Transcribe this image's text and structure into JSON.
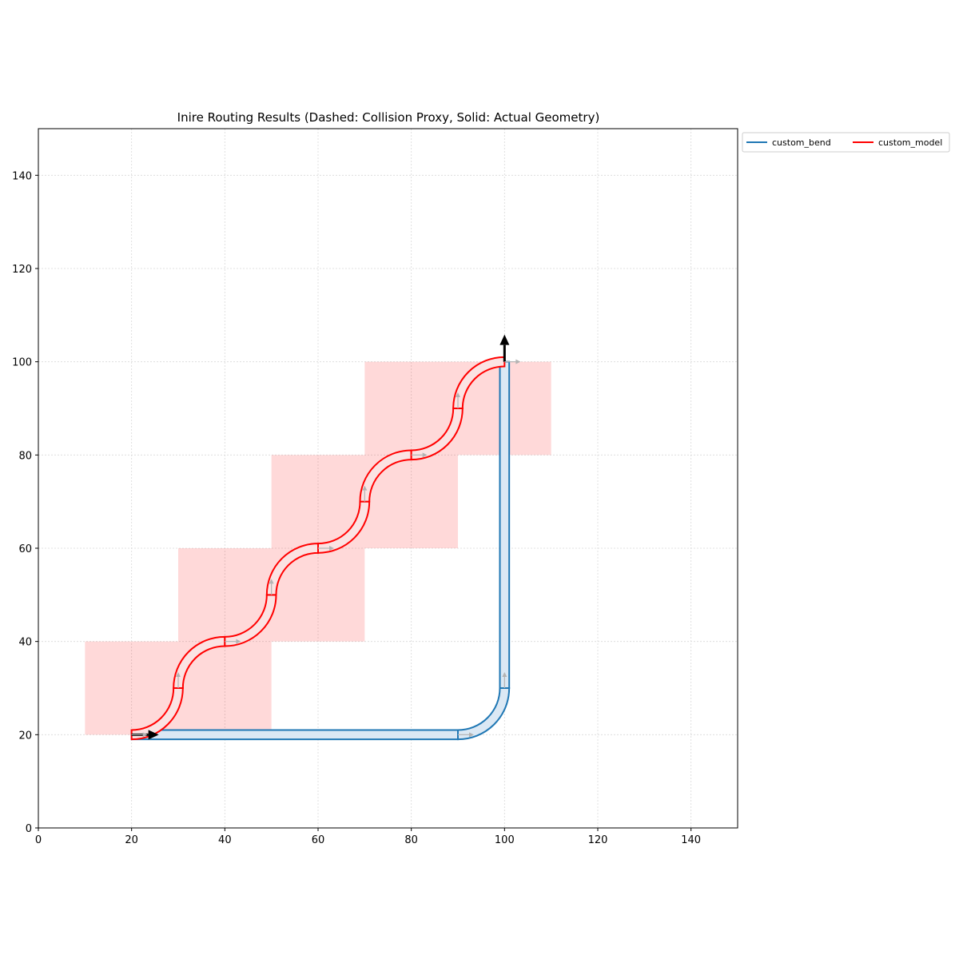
{
  "chart_data": {
    "type": "line",
    "title": "Inire Routing Results (Dashed: Collision Proxy, Solid: Actual Geometry)",
    "xlim": [
      0,
      150
    ],
    "ylim": [
      0,
      150
    ],
    "xticks": [
      0,
      20,
      40,
      60,
      80,
      100,
      120,
      140
    ],
    "yticks": [
      0,
      20,
      40,
      60,
      80,
      100,
      120,
      140
    ],
    "xtick_labels": [
      "0",
      "20",
      "40",
      "60",
      "80",
      "100",
      "120",
      "140"
    ],
    "ytick_labels": [
      "0",
      "20",
      "40",
      "60",
      "80",
      "100",
      "120",
      "140"
    ],
    "grid": true,
    "legend": {
      "placement": "outside-top-right",
      "entries": [
        "custom_bend",
        "custom_model"
      ]
    },
    "series": [
      {
        "name": "custom_bend",
        "color": "#1f77b4",
        "fill": "#dbe8f4",
        "width": 2,
        "segments": [
          {
            "type": "straight",
            "from": [
              20,
              20
            ],
            "to": [
              90,
              20
            ]
          },
          {
            "type": "bend",
            "center": [
              90,
              30
            ],
            "radius": 10,
            "start_angle": -90,
            "end_angle": 0
          },
          {
            "type": "straight",
            "from": [
              100,
              30
            ],
            "to": [
              100,
              100
            ]
          }
        ]
      },
      {
        "name": "custom_model",
        "color": "#ff0000",
        "fill": "#fbe3e3",
        "width": 2,
        "segments": [
          {
            "type": "bend",
            "center": [
              20,
              30
            ],
            "radius": 10,
            "start_angle": -90,
            "end_angle": 0
          },
          {
            "type": "bend",
            "center": [
              40,
              30
            ],
            "radius": 10,
            "start_angle": 180,
            "end_angle": 90
          },
          {
            "type": "bend",
            "center": [
              40,
              50
            ],
            "radius": 10,
            "start_angle": -90,
            "end_angle": 0
          },
          {
            "type": "bend",
            "center": [
              60,
              50
            ],
            "radius": 10,
            "start_angle": 180,
            "end_angle": 90
          },
          {
            "type": "bend",
            "center": [
              60,
              70
            ],
            "radius": 10,
            "start_angle": -90,
            "end_angle": 0
          },
          {
            "type": "bend",
            "center": [
              80,
              70
            ],
            "radius": 10,
            "start_angle": 180,
            "end_angle": 90
          },
          {
            "type": "bend",
            "center": [
              80,
              90
            ],
            "radius": 10,
            "start_angle": -90,
            "end_angle": 0
          },
          {
            "type": "bend",
            "center": [
              100,
              90
            ],
            "radius": 10,
            "start_angle": 180,
            "end_angle": 90
          }
        ]
      }
    ],
    "collision_proxies": {
      "color": "#ff0000",
      "opacity": 0.15,
      "boxes": [
        {
          "x": [
            10,
            50
          ],
          "y": [
            20,
            40
          ]
        },
        {
          "x": [
            30,
            70
          ],
          "y": [
            40,
            60
          ]
        },
        {
          "x": [
            50,
            90
          ],
          "y": [
            60,
            80
          ]
        },
        {
          "x": [
            70,
            110
          ],
          "y": [
            80,
            100
          ]
        }
      ]
    },
    "direction_arrows": [
      {
        "at": [
          20,
          20
        ],
        "dir": "east",
        "style": "endpoint"
      },
      {
        "at": [
          100,
          100
        ],
        "dir": "north",
        "style": "endpoint"
      },
      {
        "at": [
          90,
          20
        ],
        "dir": "east",
        "style": "marker"
      },
      {
        "at": [
          100,
          30
        ],
        "dir": "north",
        "style": "marker"
      },
      {
        "at": [
          100,
          100
        ],
        "dir": "east",
        "style": "marker"
      },
      {
        "at": [
          20,
          20
        ],
        "dir": "east",
        "style": "marker"
      },
      {
        "at": [
          30,
          30
        ],
        "dir": "north",
        "style": "marker"
      },
      {
        "at": [
          40,
          40
        ],
        "dir": "east",
        "style": "marker"
      },
      {
        "at": [
          50,
          50
        ],
        "dir": "north",
        "style": "marker"
      },
      {
        "at": [
          60,
          60
        ],
        "dir": "east",
        "style": "marker"
      },
      {
        "at": [
          70,
          70
        ],
        "dir": "north",
        "style": "marker"
      },
      {
        "at": [
          80,
          80
        ],
        "dir": "east",
        "style": "marker"
      },
      {
        "at": [
          90,
          90
        ],
        "dir": "north",
        "style": "marker"
      }
    ]
  }
}
